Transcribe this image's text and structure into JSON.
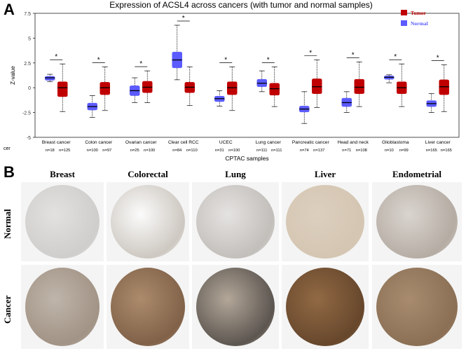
{
  "figure": {
    "panel_a_letter": "A",
    "panel_b_letter": "B"
  },
  "chart_data": {
    "type": "box",
    "title": "Expression of ACSL4 across cancers (with tumor and normal samples)",
    "xlabel": "CPTAC samples",
    "ylabel": "Z-value",
    "ylim": [
      -5,
      7.5
    ],
    "yticks": [
      -5,
      -2.5,
      0,
      2.5,
      5,
      7.5
    ],
    "ytick_labels": [
      "-5",
      "-2.5",
      "0",
      "2.5",
      "5",
      "7.5"
    ],
    "left_edge_label": "cer",
    "legend": {
      "position": "top-right",
      "entries": [
        {
          "name": "Tumor",
          "color": "#c00000"
        },
        {
          "name": "Normal",
          "color": "#5b5bff"
        }
      ]
    },
    "significance_marker": "*",
    "colors": {
      "normal": "#5b5bff",
      "tumor": "#c00000"
    },
    "groups": [
      {
        "name": "Breast cancer",
        "normal_n": "n=18",
        "tumor_n": "n=125",
        "normal": {
          "whislo": 0.6,
          "q1": 0.75,
          "med": 1.0,
          "q3": 1.15,
          "whishi": 1.35
        },
        "tumor": {
          "whislo": -2.4,
          "q1": -0.9,
          "med": 0.0,
          "q3": 0.6,
          "whishi": 2.4
        }
      },
      {
        "name": "Colon cancer",
        "normal_n": "n=100",
        "tumor_n": "n=97",
        "normal": {
          "whislo": -3.0,
          "q1": -2.25,
          "med": -1.9,
          "q3": -1.55,
          "whishi": -0.8
        },
        "tumor": {
          "whislo": -2.3,
          "q1": -0.7,
          "med": 0.0,
          "q3": 0.55,
          "whishi": 2.1
        }
      },
      {
        "name": "Ovarian cancer",
        "normal_n": "n=25",
        "tumor_n": "n=100",
        "normal": {
          "whislo": -1.5,
          "q1": -0.8,
          "med": -0.3,
          "q3": 0.2,
          "whishi": 1.0
        },
        "tumor": {
          "whislo": -1.5,
          "q1": -0.5,
          "med": 0.05,
          "q3": 0.65,
          "whishi": 1.7
        }
      },
      {
        "name": "Clear cell RCC",
        "normal_n": "n=84",
        "tumor_n": "n=110",
        "normal": {
          "whislo": 0.8,
          "q1": 2.0,
          "med": 2.8,
          "q3": 3.6,
          "whishi": 6.3
        },
        "tumor": {
          "whislo": -1.8,
          "q1": -0.5,
          "med": 0.05,
          "q3": 0.55,
          "whishi": 2.1
        }
      },
      {
        "name": "UCEC",
        "normal_n": "n=31",
        "tumor_n": "n=100",
        "normal": {
          "whislo": -1.85,
          "q1": -1.4,
          "med": -1.1,
          "q3": -0.85,
          "whishi": -0.3
        },
        "tumor": {
          "whislo": -2.3,
          "q1": -0.7,
          "med": 0.0,
          "q3": 0.6,
          "whishi": 2.1
        }
      },
      {
        "name": "Lung cancer",
        "normal_n": "n=111",
        "tumor_n": "n=111",
        "normal": {
          "whislo": -0.4,
          "q1": 0.1,
          "med": 0.45,
          "q3": 0.85,
          "whishi": 1.7
        },
        "tumor": {
          "whislo": -1.9,
          "q1": -0.75,
          "med": -0.1,
          "q3": 0.45,
          "whishi": 2.1
        }
      },
      {
        "name": "Pancreatic cancer",
        "normal_n": "n=74",
        "tumor_n": "n=137",
        "normal": {
          "whislo": -3.6,
          "q1": -2.45,
          "med": -2.15,
          "q3": -1.85,
          "whishi": -0.4
        },
        "tumor": {
          "whislo": -2.0,
          "q1": -0.6,
          "med": 0.1,
          "q3": 0.9,
          "whishi": 2.8
        }
      },
      {
        "name": "Head and neck",
        "normal_n": "n=71",
        "tumor_n": "n=108",
        "normal": {
          "whislo": -2.5,
          "q1": -1.9,
          "med": -1.5,
          "q3": -1.05,
          "whishi": -0.4
        },
        "tumor": {
          "whislo": -1.9,
          "q1": -0.6,
          "med": 0.05,
          "q3": 0.85,
          "whishi": 2.6
        }
      },
      {
        "name": "Glioblastoma",
        "normal_n": "n=10",
        "tumor_n": "n=99",
        "normal": {
          "whislo": 0.5,
          "q1": 0.85,
          "med": 1.05,
          "q3": 1.2,
          "whishi": 1.3
        },
        "tumor": {
          "whislo": -1.9,
          "q1": -0.6,
          "med": 0.0,
          "q3": 0.6,
          "whishi": 2.4
        }
      },
      {
        "name": "Liver cancer",
        "normal_n": "n=165",
        "tumor_n": "n=165",
        "normal": {
          "whislo": -2.5,
          "q1": -1.9,
          "med": -1.6,
          "q3": -1.3,
          "whishi": -0.6
        },
        "tumor": {
          "whislo": -2.4,
          "q1": -0.7,
          "med": 0.1,
          "q3": 0.8,
          "whishi": 2.3
        }
      }
    ]
  },
  "ihc": {
    "columns": [
      "Breast",
      "Colorectal",
      "Lung",
      "Liver",
      "Endometrial"
    ],
    "rows": [
      "Normal",
      "Cancer"
    ],
    "tiles": [
      {
        "row": "Normal",
        "col": "Breast",
        "fill": "#d8d6d2",
        "tissue": "#b9b6b4",
        "stain_level": 0.15
      },
      {
        "row": "Normal",
        "col": "Colorectal",
        "fill": "#ffffff",
        "tissue": "#b9b1a6",
        "stain_level": 0.25
      },
      {
        "row": "Normal",
        "col": "Lung",
        "fill": "#dcd9d6",
        "tissue": "#a6a09a",
        "stain_level": 0.2
      },
      {
        "row": "Normal",
        "col": "Liver",
        "fill": "#d4c3ac",
        "tissue": "#c9b69b",
        "stain_level": 0.45
      },
      {
        "row": "Normal",
        "col": "Endometrial",
        "fill": "#cfc8c0",
        "tissue": "#9b8e82",
        "stain_level": 0.35
      },
      {
        "row": "Cancer",
        "col": "Breast",
        "fill": "#b0a395",
        "tissue": "#8a7866",
        "stain_level": 0.5
      },
      {
        "row": "Cancer",
        "col": "Colorectal",
        "fill": "#a07a55",
        "tissue": "#6e4a2d",
        "stain_level": 0.7
      },
      {
        "row": "Cancer",
        "col": "Lung",
        "fill": "#a59685",
        "tissue": "#3b332c",
        "stain_level": 0.6
      },
      {
        "row": "Cancer",
        "col": "Liver",
        "fill": "#8a5f37",
        "tissue": "#5c3a1d",
        "stain_level": 0.85
      },
      {
        "row": "Cancer",
        "col": "Endometrial",
        "fill": "#9c7b5a",
        "tissue": "#7a5a3b",
        "stain_level": 0.7
      }
    ]
  }
}
